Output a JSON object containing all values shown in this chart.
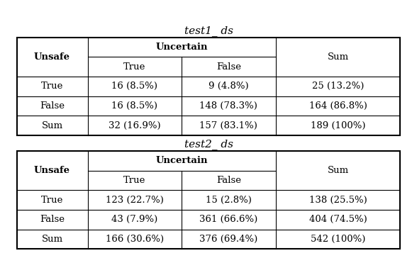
{
  "title1": "test1_ ds",
  "title2": "test2_ ds",
  "table1": {
    "rows": [
      [
        "True",
        "16 (8.5%)",
        "9 (4.8%)",
        "25 (13.2%)"
      ],
      [
        "False",
        "16 (8.5%)",
        "148 (78.3%)",
        "164 (86.8%)"
      ],
      [
        "Sum",
        "32 (16.9%)",
        "157 (83.1%)",
        "189 (100%)"
      ]
    ]
  },
  "table2": {
    "rows": [
      [
        "True",
        "123 (22.7%)",
        "15 (2.8%)",
        "138 (25.5%)"
      ],
      [
        "False",
        "43 (7.9%)",
        "361 (66.6%)",
        "404 (74.5%)"
      ],
      [
        "Sum",
        "166 (30.6%)",
        "376 (69.4%)",
        "542 (100%)"
      ]
    ]
  },
  "background_color": "#ffffff"
}
